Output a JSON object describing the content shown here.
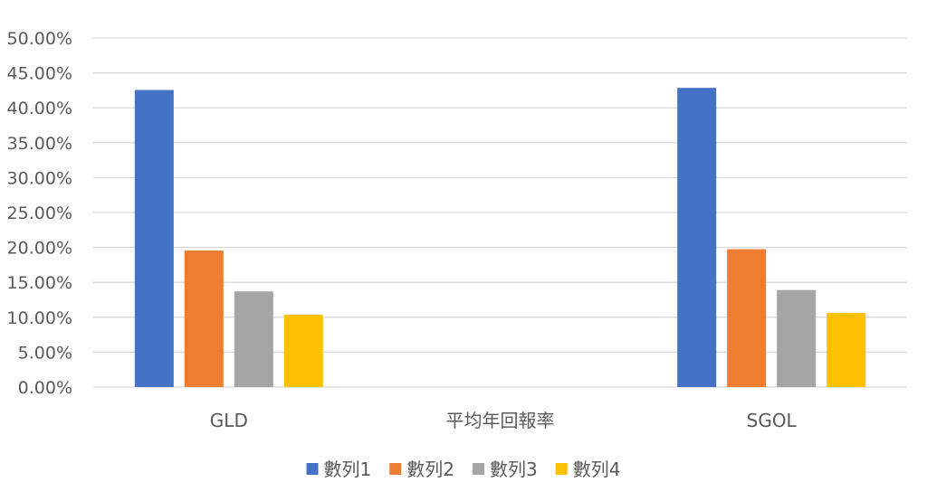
{
  "chart_data": {
    "type": "bar",
    "categories": [
      "GLD",
      "平均年回報率",
      "SGOL"
    ],
    "series": [
      {
        "name": "數列1",
        "values": [
          0.4255,
          null,
          0.4285
        ],
        "color": "#4472C4"
      },
      {
        "name": "數列2",
        "values": [
          0.1955,
          null,
          0.1975
        ],
        "color": "#ED7D31"
      },
      {
        "name": "數列3",
        "values": [
          0.137,
          null,
          0.139
        ],
        "color": "#A5A5A5"
      },
      {
        "name": "數列4",
        "values": [
          0.1035,
          null,
          0.106
        ],
        "color": "#FFC000"
      }
    ],
    "ylim": [
      0,
      0.5
    ],
    "y_ticks": [
      0,
      0.05,
      0.1,
      0.15,
      0.2,
      0.25,
      0.3,
      0.35,
      0.4,
      0.45,
      0.5
    ],
    "y_tick_labels": [
      "0.00%",
      "5.00%",
      "10.00%",
      "15.00%",
      "20.00%",
      "25.00%",
      "30.00%",
      "35.00%",
      "40.00%",
      "45.00%",
      "50.00%"
    ],
    "grid": true,
    "legend_position": "bottom",
    "gridline_color": "#D9D9D9",
    "text_color": "#595959"
  }
}
